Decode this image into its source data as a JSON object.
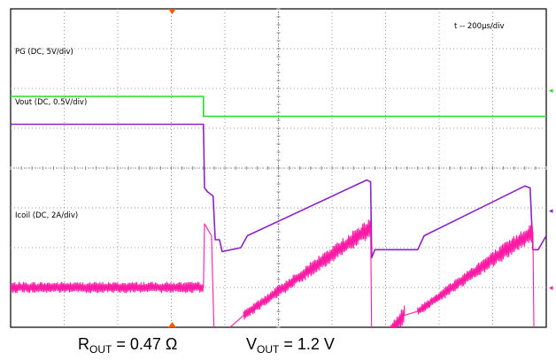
{
  "chart_data": {
    "type": "line",
    "timebase": "t -- 200µs/div",
    "grid": {
      "x_divisions": 10,
      "y_divisions": 8
    },
    "channels": [
      {
        "name": "PG",
        "label": "PG (DC, 5V/div)",
        "color": "#22dd22",
        "x_div": [
          0,
          3.6,
          3.6,
          10
        ],
        "y_div": [
          2.2,
          2.2,
          2.7,
          2.7
        ]
      },
      {
        "name": "Vout",
        "label": "Vout (DC, 0.5V/div)",
        "color": "#8a22c8",
        "x_div": [
          0,
          3.6,
          3.62,
          3.68,
          3.78,
          3.82,
          3.9,
          3.95,
          4.3,
          4.42,
          6.65,
          6.72,
          6.74,
          6.8,
          7.6,
          7.72,
          9.6,
          9.7,
          9.75,
          9.85,
          10.0
        ],
        "y_div": [
          2.9,
          2.9,
          4.5,
          4.6,
          4.7,
          5.8,
          5.8,
          6.1,
          6.0,
          5.7,
          4.3,
          4.35,
          6.25,
          6.05,
          6.05,
          5.7,
          4.45,
          4.5,
          6.05,
          6.05,
          5.7
        ]
      },
      {
        "name": "Icoil",
        "label": "Icoil (DC, 2A/div)",
        "color": "#ff1aa6",
        "x_div": [
          0,
          3.6,
          3.62,
          3.75,
          3.8,
          4.05,
          4.1,
          4.35,
          6.72,
          6.74,
          7.0,
          7.35,
          7.6,
          9.75,
          9.77,
          10.0,
          10.5,
          10.8
        ],
        "y_div": [
          7.0,
          7.0,
          5.4,
          5.7,
          8.2,
          8.2,
          8.0,
          7.7,
          5.5,
          8.2,
          8.2,
          7.7,
          7.6,
          5.6,
          8.2,
          8.2,
          7.7,
          7.6
        ]
      }
    ]
  },
  "caption": {
    "rout_main": "R",
    "rout_sub": "OUT",
    "rout_value": " = 0.47 Ω",
    "vout_main": "V",
    "vout_sub": "OUT",
    "vout_value": " = 1.2 V"
  }
}
